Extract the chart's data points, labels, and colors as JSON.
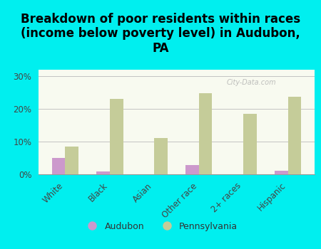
{
  "title": "Breakdown of poor residents within races\n(income below poverty level) in Audubon,\nPA",
  "categories": [
    "White",
    "Black",
    "Asian",
    "Other race",
    "2+ races",
    "Hispanic"
  ],
  "audubon_values": [
    5.0,
    0.8,
    0.0,
    2.8,
    0.0,
    1.0
  ],
  "pennsylvania_values": [
    8.5,
    23.0,
    11.2,
    24.8,
    18.5,
    23.8
  ],
  "audubon_color": "#cc99cc",
  "pennsylvania_color": "#c5cc99",
  "background_outer": "#00efef",
  "background_inner_top": "#e8f0d8",
  "background_inner_bottom": "#f8faf0",
  "bar_width": 0.3,
  "ylim": [
    0,
    32
  ],
  "yticks": [
    0,
    10,
    20,
    30
  ],
  "ytick_labels": [
    "0%",
    "10%",
    "20%",
    "30%"
  ],
  "legend_labels": [
    "Audubon",
    "Pennsylvania"
  ],
  "title_fontsize": 12,
  "tick_fontsize": 8.5,
  "legend_fontsize": 9,
  "watermark": "City-Data.com"
}
